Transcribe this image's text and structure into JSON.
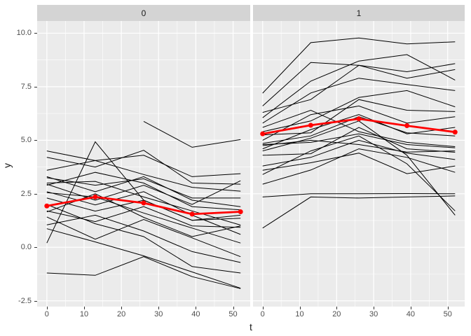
{
  "figure": {
    "facet_labels": [
      "0",
      "1"
    ],
    "x_axis_title": "t",
    "y_axis_title": "y"
  },
  "colors": {
    "mean_line": "#ff0000",
    "spaghetti_line": "#000000",
    "panel_bg": "#ebebeb",
    "strip_bg": "#d4d4d4",
    "gridline": "#ffffff",
    "tick_label_text": "#4d4d4d",
    "axis_title_text": "#1a1a1a",
    "tick_mark": "#333333"
  },
  "chart_data": {
    "type": "line",
    "title": "",
    "xlabel": "t",
    "ylabel": "y",
    "facets": [
      "0",
      "1"
    ],
    "x_points": [
      0,
      13,
      26,
      39,
      52
    ],
    "xlim": [
      -2.6,
      54.6
    ],
    "ylim": [
      -2.77,
      10.57
    ],
    "x_major_ticks": [
      0,
      10,
      20,
      30,
      40,
      50
    ],
    "x_minor_ticks": [
      5,
      15,
      25,
      35,
      45
    ],
    "x_tick_labels": [
      "0",
      "10",
      "20",
      "30",
      "40",
      "50"
    ],
    "y_major_ticks": [
      -2.5,
      0,
      2.5,
      5,
      7.5,
      10
    ],
    "y_minor_ticks": [
      -1.25,
      1.25,
      3.75,
      6.25,
      8.75
    ],
    "y_tick_labels": [
      "-2.5",
      "0.0",
      "2.5",
      "5.0",
      "7.5",
      "10.0"
    ],
    "grid": true,
    "legend_position": "none",
    "panels": [
      {
        "facet": "0",
        "mean": [
          1.93,
          2.35,
          2.07,
          1.55,
          1.66
        ],
        "lines": [
          [
            4.5,
            4.05,
            4.3,
            3.3,
            3.44
          ],
          [
            0.2,
            4.93,
            2.2,
            1.26,
            1.36
          ],
          [
            4.2,
            3.75,
            4.53,
            3.0,
            2.95
          ],
          [
            3.6,
            4.05,
            3.4,
            2.8,
            2.62
          ],
          [
            3.3,
            2.6,
            3.3,
            2.2,
            1.9
          ],
          [
            3.25,
            2.9,
            3.2,
            2.3,
            2.3
          ],
          [
            3.0,
            3.08,
            2.35,
            1.7,
            1.04
          ],
          [
            2.95,
            2.2,
            2.9,
            2.0,
            3.11
          ],
          [
            2.9,
            3.5,
            3.0,
            1.9,
            1.75
          ],
          [
            2.6,
            1.98,
            2.6,
            1.5,
            0.6
          ],
          [
            2.55,
            2.35,
            1.6,
            0.9,
            0.2
          ],
          [
            2.3,
            1.69,
            2.2,
            1.26,
            1.5
          ],
          [
            1.7,
            1.2,
            1.9,
            1.0,
            0.93
          ],
          [
            1.65,
            2.5,
            1.4,
            0.5,
            1.0
          ],
          [
            1.42,
            0.38,
            1.3,
            0.44,
            -0.44
          ],
          [
            1.05,
            1.5,
            0.76,
            -0.2,
            -0.71
          ],
          [
            0.87,
            0.25,
            -0.4,
            -1.15,
            -1.91
          ],
          [
            -1.2,
            -1.31,
            -0.44,
            -1.37,
            -1.93
          ],
          [
            2.0,
            1.1,
            0.5,
            -0.9,
            -1.2
          ],
          [
            null,
            null,
            5.88,
            4.67,
            5.03
          ]
        ]
      },
      {
        "facet": "1",
        "mean": [
          5.3,
          5.7,
          6.0,
          5.68,
          5.38
        ],
        "lines": [
          [
            7.2,
            9.56,
            9.78,
            9.5,
            9.6
          ],
          [
            6.6,
            8.63,
            8.5,
            8.2,
            8.58
          ],
          [
            6.05,
            7.76,
            8.7,
            9.0,
            7.81
          ],
          [
            5.8,
            7.21,
            7.9,
            7.6,
            7.32
          ],
          [
            5.4,
            5.9,
            7.0,
            7.32,
            6.56
          ],
          [
            5.25,
            5.35,
            6.9,
            6.4,
            6.34
          ],
          [
            4.85,
            5.2,
            6.1,
            5.35,
            5.2
          ],
          [
            4.8,
            4.9,
            5.3,
            4.8,
            4.65
          ],
          [
            4.75,
            5.0,
            4.8,
            4.45,
            4.5
          ],
          [
            4.3,
            4.37,
            5.6,
            4.6,
            4.44
          ],
          [
            3.8,
            4.2,
            5.0,
            4.4,
            4.1
          ],
          [
            3.6,
            3.95,
            4.4,
            3.44,
            3.8
          ],
          [
            2.95,
            3.61,
            4.6,
            4.2,
            3.5
          ],
          [
            2.35,
            2.5,
            2.5,
            2.51,
            2.5
          ],
          [
            0.9,
            2.35,
            2.3,
            2.35,
            2.4
          ],
          [
            6.3,
            6.9,
            8.5,
            7.9,
            8.3
          ],
          [
            5.0,
            6.2,
            6.6,
            5.8,
            6.1
          ],
          [
            4.6,
            5.5,
            6.2,
            5.3,
            5.6
          ],
          [
            5.6,
            6.4,
            5.4,
            4.9,
            4.7
          ],
          [
            4.5,
            5.1,
            5.9,
            4.3,
            1.5
          ],
          [
            3.4,
            4.5,
            5.2,
            3.9,
            1.7
          ]
        ]
      }
    ]
  }
}
